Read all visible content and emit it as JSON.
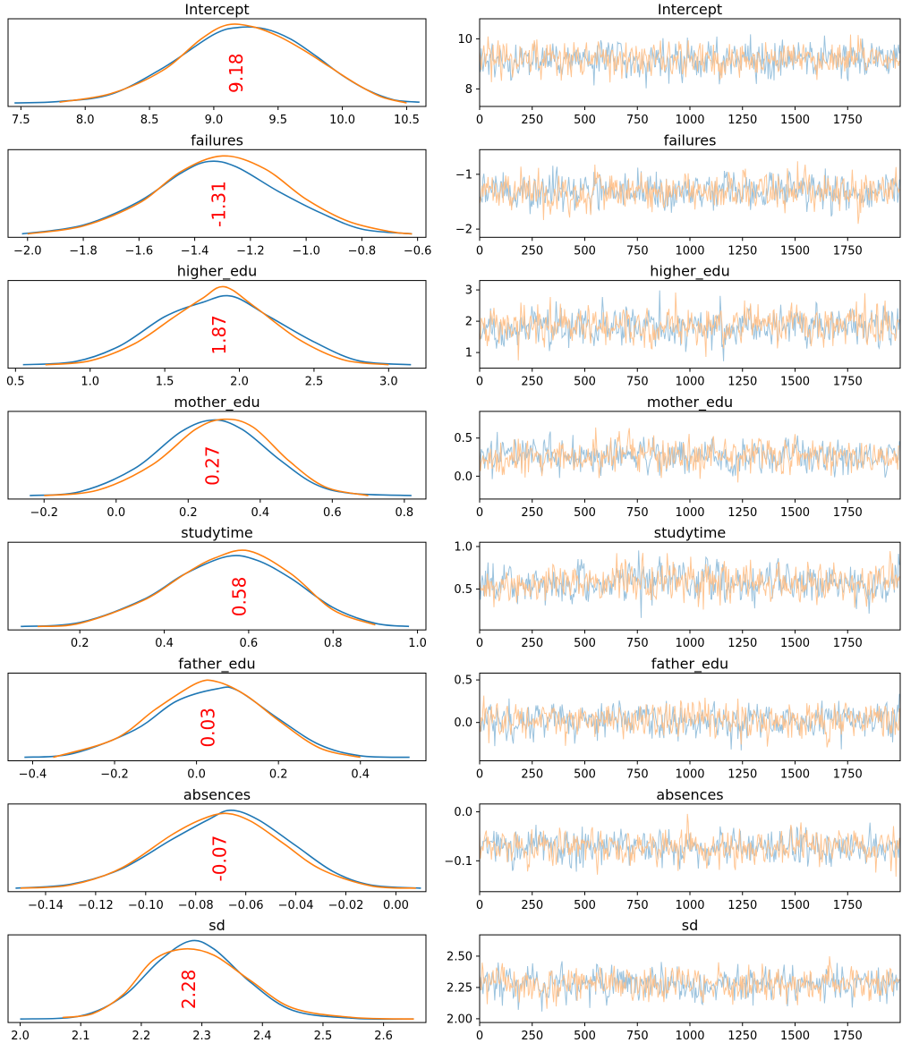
{
  "colors": {
    "chain1": "#1f77b4",
    "chain2": "#ff7f0e",
    "trace_chain1": "#8fbbd9",
    "trace_chain2": "#ffbf86",
    "annotation": "#ff0000",
    "axis": "#000000"
  },
  "chart_data": [
    {
      "type": "line",
      "name": "Intercept",
      "title": "Intercept",
      "density": {
        "xlim": [
          7.4,
          10.65
        ],
        "xticks": [
          "7.5",
          "8.0",
          "8.5",
          "9.0",
          "9.5",
          "10.0",
          "10.5"
        ],
        "xtick_values": [
          7.5,
          8.0,
          8.5,
          9.0,
          9.5,
          10.0,
          10.5
        ],
        "mean_label": "9.18",
        "mean": 9.18,
        "series": [
          {
            "x": [
              7.45,
              7.8,
              8.2,
              8.6,
              9.0,
              9.2,
              9.4,
              9.6,
              9.8,
              10.0,
              10.2,
              10.4,
              10.6
            ],
            "y": [
              0.01,
              0.03,
              0.12,
              0.45,
              0.88,
              0.97,
              0.95,
              0.82,
              0.6,
              0.36,
              0.17,
              0.05,
              0.02
            ]
          },
          {
            "x": [
              7.8,
              8.2,
              8.6,
              8.9,
              9.1,
              9.3,
              9.5,
              9.7,
              9.9,
              10.1,
              10.3,
              10.5
            ],
            "y": [
              0.02,
              0.13,
              0.42,
              0.82,
              1.0,
              0.98,
              0.86,
              0.68,
              0.47,
              0.26,
              0.09,
              0.01
            ]
          }
        ]
      },
      "trace": {
        "xlim": [
          0,
          2000
        ],
        "xticks": [
          "0",
          "250",
          "500",
          "750",
          "1000",
          "1250",
          "1500",
          "1750"
        ],
        "xtick_values": [
          0,
          250,
          500,
          750,
          1000,
          1250,
          1500,
          1750
        ],
        "ylim": [
          7.3,
          10.8
        ],
        "yticks": [
          "8",
          "10"
        ],
        "ytick_values": [
          8,
          10
        ],
        "center": 9.18,
        "spread": 0.42,
        "iterations": 2000
      }
    },
    {
      "type": "line",
      "name": "failures",
      "title": "failures",
      "density": {
        "xlim": [
          -2.07,
          -0.57
        ],
        "xticks": [
          "−2.0",
          "−1.8",
          "−1.6",
          "−1.4",
          "−1.2",
          "−1.0",
          "−0.8",
          "−0.6"
        ],
        "xtick_values": [
          -2.0,
          -1.8,
          -1.6,
          -1.4,
          -1.2,
          -1.0,
          -0.8,
          -0.6
        ],
        "mean_label": "-1.31",
        "mean": -1.31,
        "series": [
          {
            "x": [
              -2.02,
              -1.8,
              -1.6,
              -1.45,
              -1.35,
              -1.25,
              -1.1,
              -0.95,
              -0.8,
              -0.62
            ],
            "y": [
              0.01,
              0.12,
              0.42,
              0.78,
              0.93,
              0.86,
              0.55,
              0.28,
              0.07,
              0.01
            ]
          },
          {
            "x": [
              -2.0,
              -1.8,
              -1.6,
              -1.45,
              -1.3,
              -1.15,
              -1.0,
              -0.85,
              -0.7,
              -0.62
            ],
            "y": [
              0.01,
              0.11,
              0.4,
              0.8,
              1.0,
              0.84,
              0.45,
              0.17,
              0.04,
              0.01
            ]
          }
        ]
      },
      "trace": {
        "xlim": [
          0,
          2000
        ],
        "xticks": [
          "0",
          "250",
          "500",
          "750",
          "1000",
          "1250",
          "1500",
          "1750"
        ],
        "xtick_values": [
          0,
          250,
          500,
          750,
          1000,
          1250,
          1500,
          1750
        ],
        "ylim": [
          -2.15,
          -0.55
        ],
        "yticks": [
          "−2",
          "−1"
        ],
        "ytick_values": [
          -2,
          -1
        ],
        "center": -1.31,
        "spread": 0.2,
        "iterations": 2000
      }
    },
    {
      "type": "line",
      "name": "higher_edu",
      "title": "higher_edu",
      "density": {
        "xlim": [
          0.45,
          3.25
        ],
        "xticks": [
          "0.5",
          "1.0",
          "1.5",
          "2.0",
          "2.5",
          "3.0"
        ],
        "xtick_values": [
          0.5,
          1.0,
          1.5,
          2.0,
          2.5,
          3.0
        ],
        "mean_label": "1.87",
        "mean": 1.87,
        "series": [
          {
            "x": [
              0.55,
              0.9,
              1.2,
              1.5,
              1.75,
              1.95,
              2.2,
              2.5,
              2.8,
              3.15
            ],
            "y": [
              0.01,
              0.05,
              0.25,
              0.62,
              0.8,
              0.88,
              0.62,
              0.3,
              0.06,
              0.01
            ]
          },
          {
            "x": [
              0.7,
              1.0,
              1.3,
              1.55,
              1.75,
              1.9,
              2.1,
              2.4,
              2.7,
              3.0
            ],
            "y": [
              0.01,
              0.06,
              0.28,
              0.6,
              0.85,
              1.0,
              0.75,
              0.33,
              0.07,
              0.01
            ]
          }
        ]
      },
      "trace": {
        "xlim": [
          0,
          2000
        ],
        "xticks": [
          "0",
          "250",
          "500",
          "750",
          "1000",
          "1250",
          "1500",
          "1750"
        ],
        "xtick_values": [
          0,
          250,
          500,
          750,
          1000,
          1250,
          1500,
          1750
        ],
        "ylim": [
          0.5,
          3.3
        ],
        "yticks": [
          "1",
          "2",
          "3"
        ],
        "ytick_values": [
          1,
          2,
          3
        ],
        "center": 1.87,
        "spread": 0.38,
        "iterations": 2000
      }
    },
    {
      "type": "line",
      "name": "mother_edu",
      "title": "mother_edu",
      "density": {
        "xlim": [
          -0.3,
          0.86
        ],
        "xticks": [
          "−0.2",
          "0.0",
          "0.2",
          "0.4",
          "0.6",
          "0.8"
        ],
        "xtick_values": [
          -0.2,
          0.0,
          0.2,
          0.4,
          0.6,
          0.8
        ],
        "mean_label": "0.27",
        "mean": 0.27,
        "series": [
          {
            "x": [
              -0.24,
              -0.1,
              0.05,
              0.18,
              0.27,
              0.35,
              0.45,
              0.55,
              0.65,
              0.82
            ],
            "y": [
              0.01,
              0.06,
              0.35,
              0.82,
              0.97,
              0.85,
              0.48,
              0.16,
              0.04,
              0.01
            ]
          },
          {
            "x": [
              -0.2,
              -0.05,
              0.1,
              0.22,
              0.3,
              0.38,
              0.48,
              0.58,
              0.7
            ],
            "y": [
              0.01,
              0.08,
              0.4,
              0.85,
              0.98,
              0.88,
              0.45,
              0.12,
              0.01
            ]
          }
        ]
      },
      "trace": {
        "xlim": [
          0,
          2000
        ],
        "xticks": [
          "0",
          "250",
          "500",
          "750",
          "1000",
          "1250",
          "1500",
          "1750"
        ],
        "xtick_values": [
          0,
          250,
          500,
          750,
          1000,
          1250,
          1500,
          1750
        ],
        "ylim": [
          -0.3,
          0.85
        ],
        "yticks": [
          "0.0",
          "0.5"
        ],
        "ytick_values": [
          0.0,
          0.5
        ],
        "center": 0.27,
        "spread": 0.13,
        "iterations": 2000
      }
    },
    {
      "type": "line",
      "name": "studytime",
      "title": "studytime",
      "density": {
        "xlim": [
          0.03,
          1.02
        ],
        "xticks": [
          "0.2",
          "0.4",
          "0.6",
          "0.8",
          "1.0"
        ],
        "xtick_values": [
          0.2,
          0.4,
          0.6,
          0.8,
          1.0
        ],
        "mean_label": "0.58",
        "mean": 0.58,
        "series": [
          {
            "x": [
              0.06,
              0.2,
              0.35,
              0.45,
              0.55,
              0.62,
              0.7,
              0.8,
              0.9,
              0.98
            ],
            "y": [
              0.01,
              0.06,
              0.35,
              0.68,
              0.9,
              0.85,
              0.62,
              0.25,
              0.05,
              0.01
            ]
          },
          {
            "x": [
              0.1,
              0.2,
              0.35,
              0.45,
              0.52,
              0.6,
              0.7,
              0.8,
              0.9
            ],
            "y": [
              0.01,
              0.05,
              0.34,
              0.68,
              0.88,
              0.97,
              0.68,
              0.22,
              0.03
            ]
          }
        ]
      },
      "trace": {
        "xlim": [
          0,
          2000
        ],
        "xticks": [
          "0",
          "250",
          "500",
          "750",
          "1000",
          "1250",
          "1500",
          "1750"
        ],
        "xtick_values": [
          0,
          250,
          500,
          750,
          1000,
          1250,
          1500,
          1750
        ],
        "ylim": [
          0.02,
          1.05
        ],
        "yticks": [
          "0.5",
          "1.0"
        ],
        "ytick_values": [
          0.5,
          1.0
        ],
        "center": 0.58,
        "spread": 0.14,
        "iterations": 2000
      }
    },
    {
      "type": "line",
      "name": "father_edu",
      "title": "father_edu",
      "density": {
        "xlim": [
          -0.46,
          0.56
        ],
        "xticks": [
          "−0.4",
          "−0.2",
          "0.0",
          "0.2",
          "0.4"
        ],
        "xtick_values": [
          -0.4,
          -0.2,
          0.0,
          0.2,
          0.4
        ],
        "mean_label": "0.03",
        "mean": 0.03,
        "series": [
          {
            "x": [
              -0.42,
              -0.3,
              -0.15,
              -0.05,
              0.05,
              0.1,
              0.2,
              0.3,
              0.4,
              0.52
            ],
            "y": [
              0.01,
              0.06,
              0.36,
              0.72,
              0.88,
              0.86,
              0.5,
              0.17,
              0.03,
              0.01
            ]
          },
          {
            "x": [
              -0.35,
              -0.2,
              -0.1,
              0.0,
              0.05,
              0.12,
              0.2,
              0.3,
              0.4
            ],
            "y": [
              0.01,
              0.24,
              0.62,
              0.95,
              0.97,
              0.8,
              0.48,
              0.13,
              0.01
            ]
          }
        ]
      },
      "trace": {
        "xlim": [
          0,
          2000
        ],
        "xticks": [
          "0",
          "250",
          "500",
          "750",
          "1000",
          "1250",
          "1500",
          "1750"
        ],
        "xtick_values": [
          0,
          250,
          500,
          750,
          1000,
          1250,
          1500,
          1750
        ],
        "ylim": [
          -0.45,
          0.58
        ],
        "yticks": [
          "0.0",
          "0.5"
        ],
        "ytick_values": [
          0.0,
          0.5
        ],
        "center": 0.03,
        "spread": 0.12,
        "iterations": 2000
      }
    },
    {
      "type": "line",
      "name": "absences",
      "title": "absences",
      "density": {
        "xlim": [
          -0.155,
          0.012
        ],
        "xticks": [
          "−0.14",
          "−0.12",
          "−0.10",
          "−0.08",
          "−0.06",
          "−0.04",
          "−0.02",
          "0.00"
        ],
        "xtick_values": [
          -0.14,
          -0.12,
          -0.1,
          -0.08,
          -0.06,
          -0.04,
          -0.02,
          0.0
        ],
        "mean_label": "-0.07",
        "mean": -0.07,
        "series": [
          {
            "x": [
              -0.152,
              -0.13,
              -0.11,
              -0.09,
              -0.075,
              -0.066,
              -0.055,
              -0.04,
              -0.025,
              -0.01,
              0.01
            ],
            "y": [
              0.01,
              0.06,
              0.25,
              0.62,
              0.88,
              1.0,
              0.88,
              0.55,
              0.22,
              0.05,
              0.01
            ]
          },
          {
            "x": [
              -0.15,
              -0.13,
              -0.11,
              -0.09,
              -0.078,
              -0.068,
              -0.058,
              -0.045,
              -0.03,
              -0.01,
              0.008
            ],
            "y": [
              0.01,
              0.05,
              0.26,
              0.68,
              0.88,
              0.96,
              0.86,
              0.58,
              0.25,
              0.04,
              0.01
            ]
          }
        ]
      },
      "trace": {
        "xlim": [
          0,
          2000
        ],
        "xticks": [
          "0",
          "250",
          "500",
          "750",
          "1000",
          "1250",
          "1500",
          "1750"
        ],
        "xtick_values": [
          0,
          250,
          500,
          750,
          1000,
          1250,
          1500,
          1750
        ],
        "ylim": [
          -0.163,
          0.016
        ],
        "yticks": [
          "−0.1",
          "0.0"
        ],
        "ytick_values": [
          -0.1,
          0.0
        ],
        "center": -0.07,
        "spread": 0.022,
        "iterations": 2000
      }
    },
    {
      "type": "line",
      "name": "sd",
      "title": "sd",
      "density": {
        "xlim": [
          1.98,
          2.67
        ],
        "xticks": [
          "2.0",
          "2.1",
          "2.2",
          "2.3",
          "2.4",
          "2.5",
          "2.6"
        ],
        "xtick_values": [
          2.0,
          2.1,
          2.2,
          2.3,
          2.4,
          2.5,
          2.6
        ],
        "mean_label": "2.28",
        "mean": 2.28,
        "series": [
          {
            "x": [
              2.0,
              2.1,
              2.17,
              2.23,
              2.28,
              2.32,
              2.38,
              2.45,
              2.55,
              2.65
            ],
            "y": [
              0.01,
              0.05,
              0.3,
              0.75,
              1.0,
              0.9,
              0.48,
              0.12,
              0.02,
              0.01
            ]
          },
          {
            "x": [
              2.07,
              2.12,
              2.17,
              2.22,
              2.27,
              2.32,
              2.38,
              2.45,
              2.55,
              2.65
            ],
            "y": [
              0.03,
              0.08,
              0.32,
              0.76,
              0.9,
              0.82,
              0.5,
              0.15,
              0.03,
              0.01
            ]
          }
        ]
      },
      "trace": {
        "xlim": [
          0,
          2000
        ],
        "xticks": [
          "0",
          "250",
          "500",
          "750",
          "1000",
          "1250",
          "1500",
          "1750"
        ],
        "xtick_values": [
          0,
          250,
          500,
          750,
          1000,
          1250,
          1500,
          1750
        ],
        "ylim": [
          1.97,
          2.67
        ],
        "yticks": [
          "2.00",
          "2.25",
          "2.50"
        ],
        "ytick_values": [
          2.0,
          2.25,
          2.5
        ],
        "center": 2.28,
        "spread": 0.08,
        "iterations": 2000
      }
    }
  ]
}
